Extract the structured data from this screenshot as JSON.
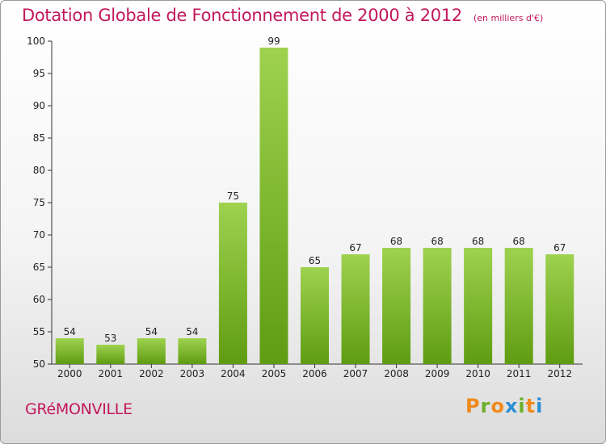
{
  "header": {
    "title": "Dotation Globale de Fonctionnement de 2000 à 2012",
    "unit": "(en milliers d'€)"
  },
  "footer": {
    "commune": "GRéMONVILLE",
    "logo": [
      "P",
      "r",
      "o",
      "x",
      "i",
      "t",
      "i"
    ]
  },
  "colors": {
    "title": "#c2185b",
    "bar_top": "#9ed24f",
    "bar_bottom": "#5f9c12",
    "logo": [
      "#f08a1c",
      "#6cb02a",
      "#f08a1c",
      "#2b8fd6",
      "#6cb02a",
      "#f08a1c",
      "#2b8fd6"
    ]
  },
  "chart_data": {
    "type": "bar",
    "categories": [
      "2000",
      "2001",
      "2002",
      "2003",
      "2004",
      "2005",
      "2006",
      "2007",
      "2008",
      "2009",
      "2010",
      "2011",
      "2012"
    ],
    "values": [
      54,
      53,
      54,
      54,
      75,
      99,
      65,
      67,
      68,
      68,
      68,
      68,
      67
    ],
    "ylim": [
      50,
      100
    ],
    "yticks": [
      50,
      55,
      60,
      65,
      70,
      75,
      80,
      85,
      90,
      95,
      100
    ],
    "grid": false,
    "legend": "none"
  }
}
